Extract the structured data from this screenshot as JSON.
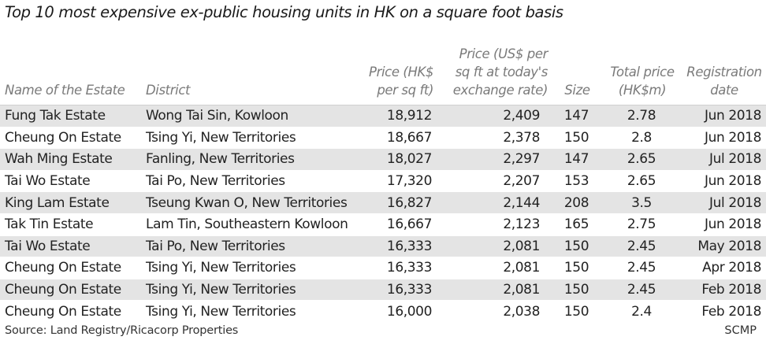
{
  "title": "Top 10 most expensive ex-public housing units in HK on a square foot basis",
  "columns": [
    "Name of the Estate",
    "District",
    "Price (HK$ per sq ft)",
    "Price (US$ per sq ft at today's exchange rate)",
    "Size",
    "Total price (HK$m)",
    "Registration date"
  ],
  "rows": [
    [
      "Fung Tak Estate",
      "Wong Tai Sin, Kowloon",
      "18,912",
      "2,409",
      "147",
      "2.78",
      "Jun 2018"
    ],
    [
      "Cheung On Estate",
      "Tsing Yi, New Territories",
      "18,667",
      "2,378",
      "150",
      "2.8",
      "Jun 2018"
    ],
    [
      "Wah Ming Estate",
      "Fanling, New Territories",
      "18,027",
      "2,297",
      "147",
      "2.65",
      "Jul 2018"
    ],
    [
      "Tai Wo Estate",
      "Tai Po, New Territories",
      "17,320",
      "2,207",
      "153",
      "2.65",
      "Jun 2018"
    ],
    [
      "King Lam Estate",
      "Tseung Kwan O, New Territories",
      "16,827",
      "2,144",
      "208",
      "3.5",
      "Jul 2018"
    ],
    [
      "Tak Tin Estate",
      "Lam Tin, Southeastern Kowloon",
      "16,667",
      "2,123",
      "165",
      "2.75",
      "Jun 2018"
    ],
    [
      "Tai Wo Estate",
      "Tai Po, New Territories",
      "16,333",
      "2,081",
      "150",
      "2.45",
      "May 2018"
    ],
    [
      "Cheung On Estate",
      "Tsing Yi, New Territories",
      "16,333",
      "2,081",
      "150",
      "2.45",
      "Apr 2018"
    ],
    [
      "Cheung On Estate",
      "Tsing Yi, New Territories",
      "16,333",
      "2,081",
      "150",
      "2.45",
      "Feb 2018"
    ],
    [
      "Cheung On Estate",
      "Tsing Yi, New Territories",
      "16,000",
      "2,038",
      "150",
      "2.4",
      "Feb 2018"
    ]
  ],
  "footer": {
    "source": "Source: Land Registry/Ricacorp Properties",
    "brand": "SCMP"
  },
  "colors": {
    "stripe": "#e4e4e4",
    "header_text": "#7a7a7a",
    "body_text": "#222222"
  }
}
